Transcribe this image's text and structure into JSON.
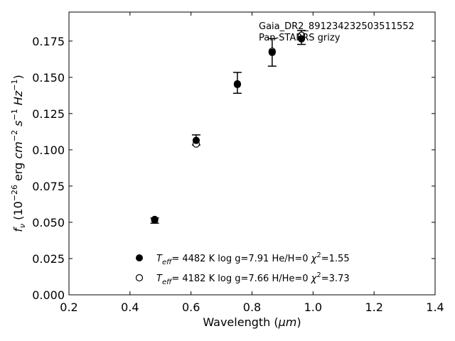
{
  "chart_data": {
    "type": "scatter",
    "xlabel": "Wavelength (μm)",
    "ylabel": "f_ν (10^-26 erg cm^-2 s^-1 Hz^-1)",
    "xlim": [
      0.2,
      1.4
    ],
    "ylim": [
      0.0,
      0.195
    ],
    "xticks": [
      "0.2",
      "0.4",
      "0.6",
      "0.8",
      "1.0",
      "1.2",
      "1.4"
    ],
    "yticks": [
      "0.000",
      "0.025",
      "0.050",
      "0.075",
      "0.100",
      "0.125",
      "0.150",
      "0.175"
    ],
    "grid": false,
    "annotations": [
      "Gaia_DR2_891234232503511552",
      "Pan-STARRS grizy"
    ],
    "observed": {
      "x": [
        0.481,
        0.617,
        0.752,
        0.866,
        0.962
      ],
      "y": [
        0.0512,
        0.1068,
        0.1462,
        0.1672,
        0.1775
      ],
      "yerr": [
        0.0018,
        0.0035,
        0.0072,
        0.0095,
        0.0048
      ]
    },
    "series": [
      {
        "marker": "filled-circle",
        "label": "He/H=0",
        "teff": "4482 K",
        "logg": "log g=7.91",
        "chi2": "1.55",
        "x": [
          0.481,
          0.617,
          0.752,
          0.866,
          0.962
        ],
        "y": [
          0.0515,
          0.1065,
          0.1455,
          0.1672,
          0.1765
        ]
      },
      {
        "marker": "open-circle",
        "label": "H/He=0",
        "teff": "4182 K",
        "logg": "log g=7.66",
        "chi2": "3.73",
        "x": [
          0.481,
          0.617,
          0.752,
          0.866,
          0.962
        ],
        "y": [
          0.052,
          0.104,
          0.145,
          0.168,
          0.179
        ]
      }
    ]
  }
}
